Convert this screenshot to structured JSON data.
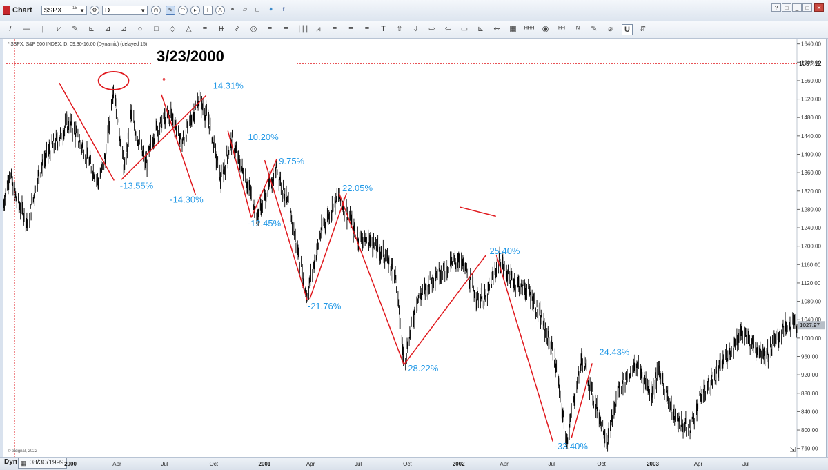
{
  "window": {
    "title": "Chart",
    "symbol": "$SPX",
    "symbol_sup": "15",
    "interval": "D",
    "legend": "* $SPX, S&P 500 INDEX, D, 09:30-16:00 (Dynamic) (delayed 15)",
    "copyright": "© eSignal, 2022",
    "controls": [
      "?",
      "□",
      "_",
      "□",
      "✕"
    ]
  },
  "toolbar": {
    "tools": [
      "/",
      "—",
      "|",
      "⩗",
      "✎",
      "⊾",
      "⊿",
      "⊿",
      "○",
      "□",
      "◇",
      "△",
      "≡",
      "⧻",
      "∕∕",
      "◎",
      "≡",
      "≡",
      "∣∣∣",
      "⩘",
      "≡",
      "≡",
      "≡",
      "T",
      "⇧",
      "⇩",
      "⇨",
      "⇦",
      "▭",
      "⊾",
      "⇜",
      "▦",
      "ᴴᴴᴴ",
      "◉",
      "ᴴᴴ",
      "ᴺ",
      "✎",
      "⌀",
      "U",
      "⇵"
    ]
  },
  "statusbar": {
    "mode": "Dyn",
    "cursor_date": "08/30/1999"
  },
  "annotation_date": "3/23/2000",
  "colors": {
    "price": "#000000",
    "swing_line": "#e0191e",
    "swing_label": "#1f97e6",
    "hline": "#e0191e",
    "last_price_bg": "#b7bec7"
  },
  "chart_data": {
    "type": "ohlc",
    "ylim": [
      740,
      1650
    ],
    "y_ticks": [
      1640,
      1600,
      1560,
      1520,
      1480,
      1440,
      1400,
      1360,
      1320,
      1280,
      1240,
      1200,
      1160,
      1120,
      1080,
      1040,
      1000,
      960,
      920,
      880,
      840,
      800,
      760
    ],
    "y_tick_labels": [
      "1640.00",
      "1600.00",
      "1560.00",
      "1520.00",
      "1480.00",
      "1440.00",
      "1400.00",
      "1360.00",
      "1320.00",
      "1280.00",
      "1240.00",
      "1200.00",
      "1160.00",
      "1120.00",
      "1080.00",
      "1040.00",
      "1000.00",
      "960.00",
      "920.00",
      "880.00",
      "840.00",
      "800.00",
      "760.00"
    ],
    "x_range": [
      "1999-08-30",
      "2003-09-30"
    ],
    "x_ticks": [
      {
        "label": "2000",
        "date": "2000-01-03",
        "bold": true
      },
      {
        "label": "Apr",
        "date": "2000-04-03",
        "bold": false
      },
      {
        "label": "Jul",
        "date": "2000-07-03",
        "bold": false
      },
      {
        "label": "Oct",
        "date": "2000-10-02",
        "bold": false
      },
      {
        "label": "2001",
        "date": "2001-01-02",
        "bold": true
      },
      {
        "label": "Apr",
        "date": "2001-04-02",
        "bold": false
      },
      {
        "label": "Jul",
        "date": "2001-07-02",
        "bold": false
      },
      {
        "label": "Oct",
        "date": "2001-10-01",
        "bold": false
      },
      {
        "label": "2002",
        "date": "2002-01-02",
        "bold": true
      },
      {
        "label": "Apr",
        "date": "2002-04-01",
        "bold": false
      },
      {
        "label": "Jul",
        "date": "2002-07-01",
        "bold": false
      },
      {
        "label": "Oct",
        "date": "2002-10-01",
        "bold": false
      },
      {
        "label": "2003",
        "date": "2003-01-02",
        "bold": true
      },
      {
        "label": "Apr",
        "date": "2003-04-01",
        "bold": false
      },
      {
        "label": "Jul",
        "date": "2003-07-01",
        "bold": false
      }
    ],
    "price_path": [
      [
        "1999-08-30",
        1290
      ],
      [
        "1999-09-10",
        1360
      ],
      [
        "1999-09-24",
        1300
      ],
      [
        "1999-10-15",
        1250
      ],
      [
        "1999-11-05",
        1360
      ],
      [
        "1999-11-20",
        1400
      ],
      [
        "1999-12-15",
        1440
      ],
      [
        "1999-12-31",
        1470
      ],
      [
        "2000-01-10",
        1450
      ],
      [
        "2000-02-01",
        1400
      ],
      [
        "2000-02-25",
        1340
      ],
      [
        "2000-03-10",
        1400
      ],
      [
        "2000-03-24",
        1550
      ],
      [
        "2000-04-14",
        1360
      ],
      [
        "2000-04-25",
        1490
      ],
      [
        "2000-05-24",
        1375
      ],
      [
        "2000-06-10",
        1450
      ],
      [
        "2000-07-10",
        1490
      ],
      [
        "2000-07-31",
        1425
      ],
      [
        "2000-09-01",
        1520
      ],
      [
        "2000-09-20",
        1470
      ],
      [
        "2000-10-12",
        1340
      ],
      [
        "2000-11-01",
        1430
      ],
      [
        "2000-11-20",
        1370
      ],
      [
        "2000-12-20",
        1270
      ],
      [
        "2001-01-25",
        1370
      ],
      [
        "2001-02-20",
        1270
      ],
      [
        "2001-03-22",
        1090
      ],
      [
        "2001-04-20",
        1240
      ],
      [
        "2001-05-22",
        1310
      ],
      [
        "2001-06-25",
        1220
      ],
      [
        "2001-07-20",
        1210
      ],
      [
        "2001-08-15",
        1180
      ],
      [
        "2001-09-05",
        1140
      ],
      [
        "2001-09-21",
        945
      ],
      [
        "2001-10-15",
        1080
      ],
      [
        "2001-11-20",
        1140
      ],
      [
        "2001-12-20",
        1160
      ],
      [
        "2002-01-04",
        1175
      ],
      [
        "2002-02-05",
        1090
      ],
      [
        "2002-02-22",
        1085
      ],
      [
        "2002-03-19",
        1170
      ],
      [
        "2002-04-10",
        1130
      ],
      [
        "2002-05-15",
        1100
      ],
      [
        "2002-06-10",
        1030
      ],
      [
        "2002-07-01",
        960
      ],
      [
        "2002-07-24",
        775
      ],
      [
        "2002-08-22",
        960
      ],
      [
        "2002-09-10",
        880
      ],
      [
        "2002-10-09",
        775
      ],
      [
        "2002-10-30",
        890
      ],
      [
        "2002-12-01",
        945
      ],
      [
        "2002-12-31",
        880
      ],
      [
        "2003-01-14",
        930
      ],
      [
        "2003-02-10",
        830
      ],
      [
        "2003-03-11",
        800
      ],
      [
        "2003-04-01",
        870
      ],
      [
        "2003-05-01",
        920
      ],
      [
        "2003-06-01",
        985
      ],
      [
        "2003-06-17",
        1010
      ],
      [
        "2003-07-10",
        985
      ],
      [
        "2003-08-05",
        965
      ],
      [
        "2003-09-05",
        1020
      ],
      [
        "2003-09-20",
        1030
      ]
    ],
    "last_price": 1027.97,
    "hline": 1597.12,
    "vline_date": "1999-08-30",
    "swing_lines": [
      {
        "x1": "1999-12-13",
        "y1": 1555,
        "x2": "2000-03-25",
        "y2": 1343
      },
      {
        "x1": "2000-04-08",
        "y1": 1345,
        "x2": "2000-09-14",
        "y2": 1528
      },
      {
        "x1": "2000-06-22",
        "y1": 1530,
        "x2": "2000-08-25",
        "y2": 1312
      },
      {
        "x1": "2000-10-25",
        "y1": 1451,
        "x2": "2000-12-08",
        "y2": 1262
      },
      {
        "x1": "2000-12-08",
        "y1": 1262,
        "x2": "2001-01-25",
        "y2": 1390
      },
      {
        "x1": "2001-01-02",
        "y1": 1387,
        "x2": "2001-03-23",
        "y2": 1083
      },
      {
        "x1": "2001-03-28",
        "y1": 1085,
        "x2": "2001-06-05",
        "y2": 1315
      },
      {
        "x1": "2001-05-22",
        "y1": 1315,
        "x2": "2001-09-21",
        "y2": 942
      },
      {
        "x1": "2001-09-21",
        "y1": 942,
        "x2": "2002-02-22",
        "y2": 1180
      },
      {
        "x1": "2002-01-04",
        "y1": 1285,
        "x2": "2002-03-13",
        "y2": 1265
      },
      {
        "x1": "2002-03-14",
        "y1": 1180,
        "x2": "2002-06-28",
        "y2": 775
      },
      {
        "x1": "2002-08-02",
        "y1": 783,
        "x2": "2002-09-10",
        "y2": 945
      }
    ],
    "annotations": [
      {
        "text": "-13.55%",
        "x": "2000-04-05",
        "y": 1325
      },
      {
        "text": "14.31%",
        "x": "2000-09-27",
        "y": 1543
      },
      {
        "text": "-14.30%",
        "x": "2000-07-08",
        "y": 1295
      },
      {
        "text": "10.20%",
        "x": "2000-12-02",
        "y": 1431
      },
      {
        "text": "-12.45%",
        "x": "2000-12-01",
        "y": 1243
      },
      {
        "text": "9.75%",
        "x": "2001-01-29",
        "y": 1378
      },
      {
        "text": "22.05%",
        "x": "2001-05-28",
        "y": 1320
      },
      {
        "text": "-21.76%",
        "x": "2001-03-24",
        "y": 1063
      },
      {
        "text": "-28.22%",
        "x": "2001-09-23",
        "y": 928
      },
      {
        "text": "25.40%",
        "x": "2002-03-01",
        "y": 1183
      },
      {
        "text": "-33.40%",
        "x": "2002-07-01",
        "y": 758
      },
      {
        "text": "24.43%",
        "x": "2002-09-23",
        "y": 963
      }
    ],
    "ellipse_date": "2000-03-24",
    "ellipse_value": 1560
  }
}
